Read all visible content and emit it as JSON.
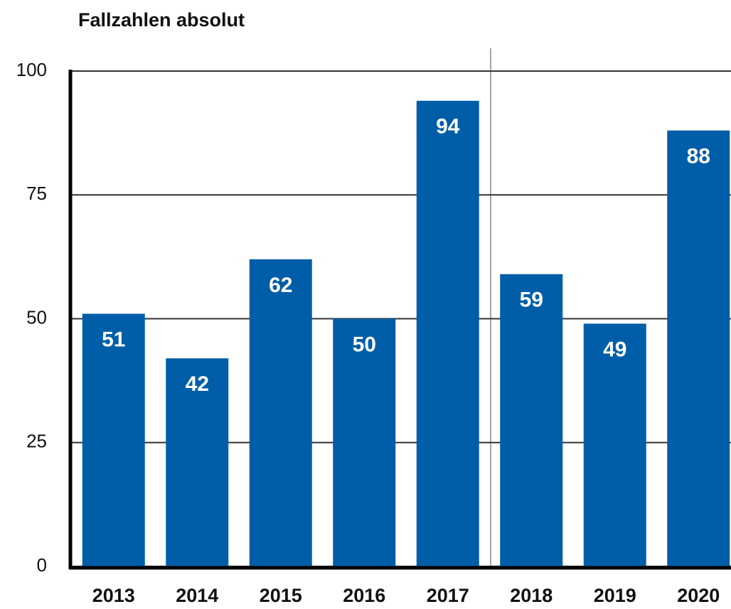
{
  "chart_data": {
    "type": "bar",
    "title": "Fallzahlen absolut",
    "categories": [
      "2013",
      "2014",
      "2015",
      "2016",
      "2017",
      "2018",
      "2019",
      "2020"
    ],
    "values": [
      51,
      42,
      62,
      50,
      94,
      59,
      49,
      88
    ],
    "color": "#005ea8",
    "ylim": [
      0,
      100
    ],
    "yticks": [
      0,
      25,
      50,
      75,
      100
    ],
    "grid": true
  }
}
